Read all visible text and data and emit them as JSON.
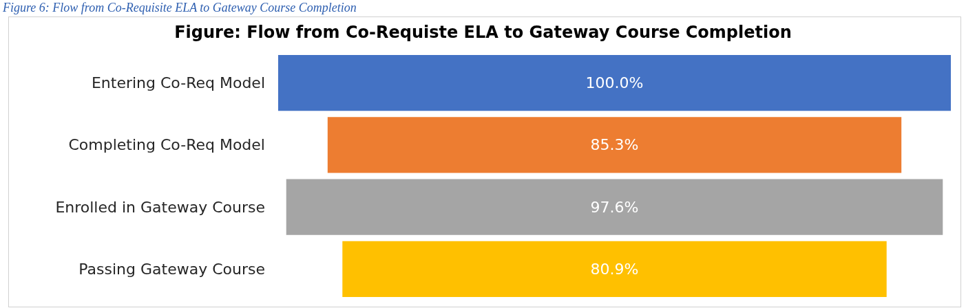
{
  "chart_data": {
    "type": "other",
    "title": "Figure: Flow from Co-Requiste ELA to Gateway Course Completion",
    "annotations": [
      "Figure 6: Flow from Co-Requisite ELA to Gateway Course Completion"
    ],
    "categories": [
      "Entering Co-Req Model",
      "Completing Co-Req Model",
      "Enrolled in Gateway Course",
      "Passing Gateway Course"
    ],
    "values": [
      100,
      85.3,
      97.6,
      80.9
    ],
    "value_labels": [
      "100.0%",
      "85.3%",
      "97.6%",
      "80.9%"
    ],
    "colors": [
      "#4472c4",
      "#ed7d31",
      "#a5a5a5",
      "#ffc000"
    ]
  }
}
